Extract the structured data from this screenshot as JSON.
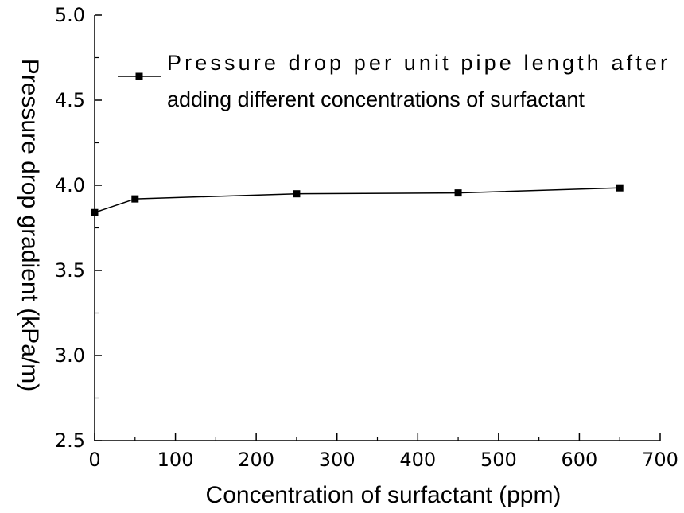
{
  "chart_data": {
    "type": "line",
    "title": "",
    "xlabel": "Concentration of surfactant (ppm)",
    "ylabel": "Pressure drop gradient (kPa/m)",
    "xlim": [
      0,
      700
    ],
    "ylim": [
      2.5,
      5.0
    ],
    "xticks": [
      0,
      100,
      200,
      300,
      400,
      500,
      600,
      700
    ],
    "xtick_labels": [
      "0",
      "100",
      "200",
      "300",
      "400",
      "500",
      "600",
      "700"
    ],
    "yticks": [
      2.5,
      3.0,
      3.5,
      4.0,
      4.5,
      5.0
    ],
    "ytick_labels": [
      "2.5",
      "3.0",
      "3.5",
      "4.0",
      "4.5",
      "5.0"
    ],
    "grid": false,
    "legend_position": "top-right",
    "series": [
      {
        "name": "Pressure drop per unit pipe length after adding different concentrations of surfactant",
        "legend_lines": [
          "Pressure drop per unit pipe length after",
          "adding different concentrations of surfactant"
        ],
        "marker": "square",
        "color": "#000000",
        "x": [
          0,
          50,
          250,
          450,
          650
        ],
        "y": [
          3.84,
          3.92,
          3.95,
          3.955,
          3.985
        ]
      }
    ]
  }
}
